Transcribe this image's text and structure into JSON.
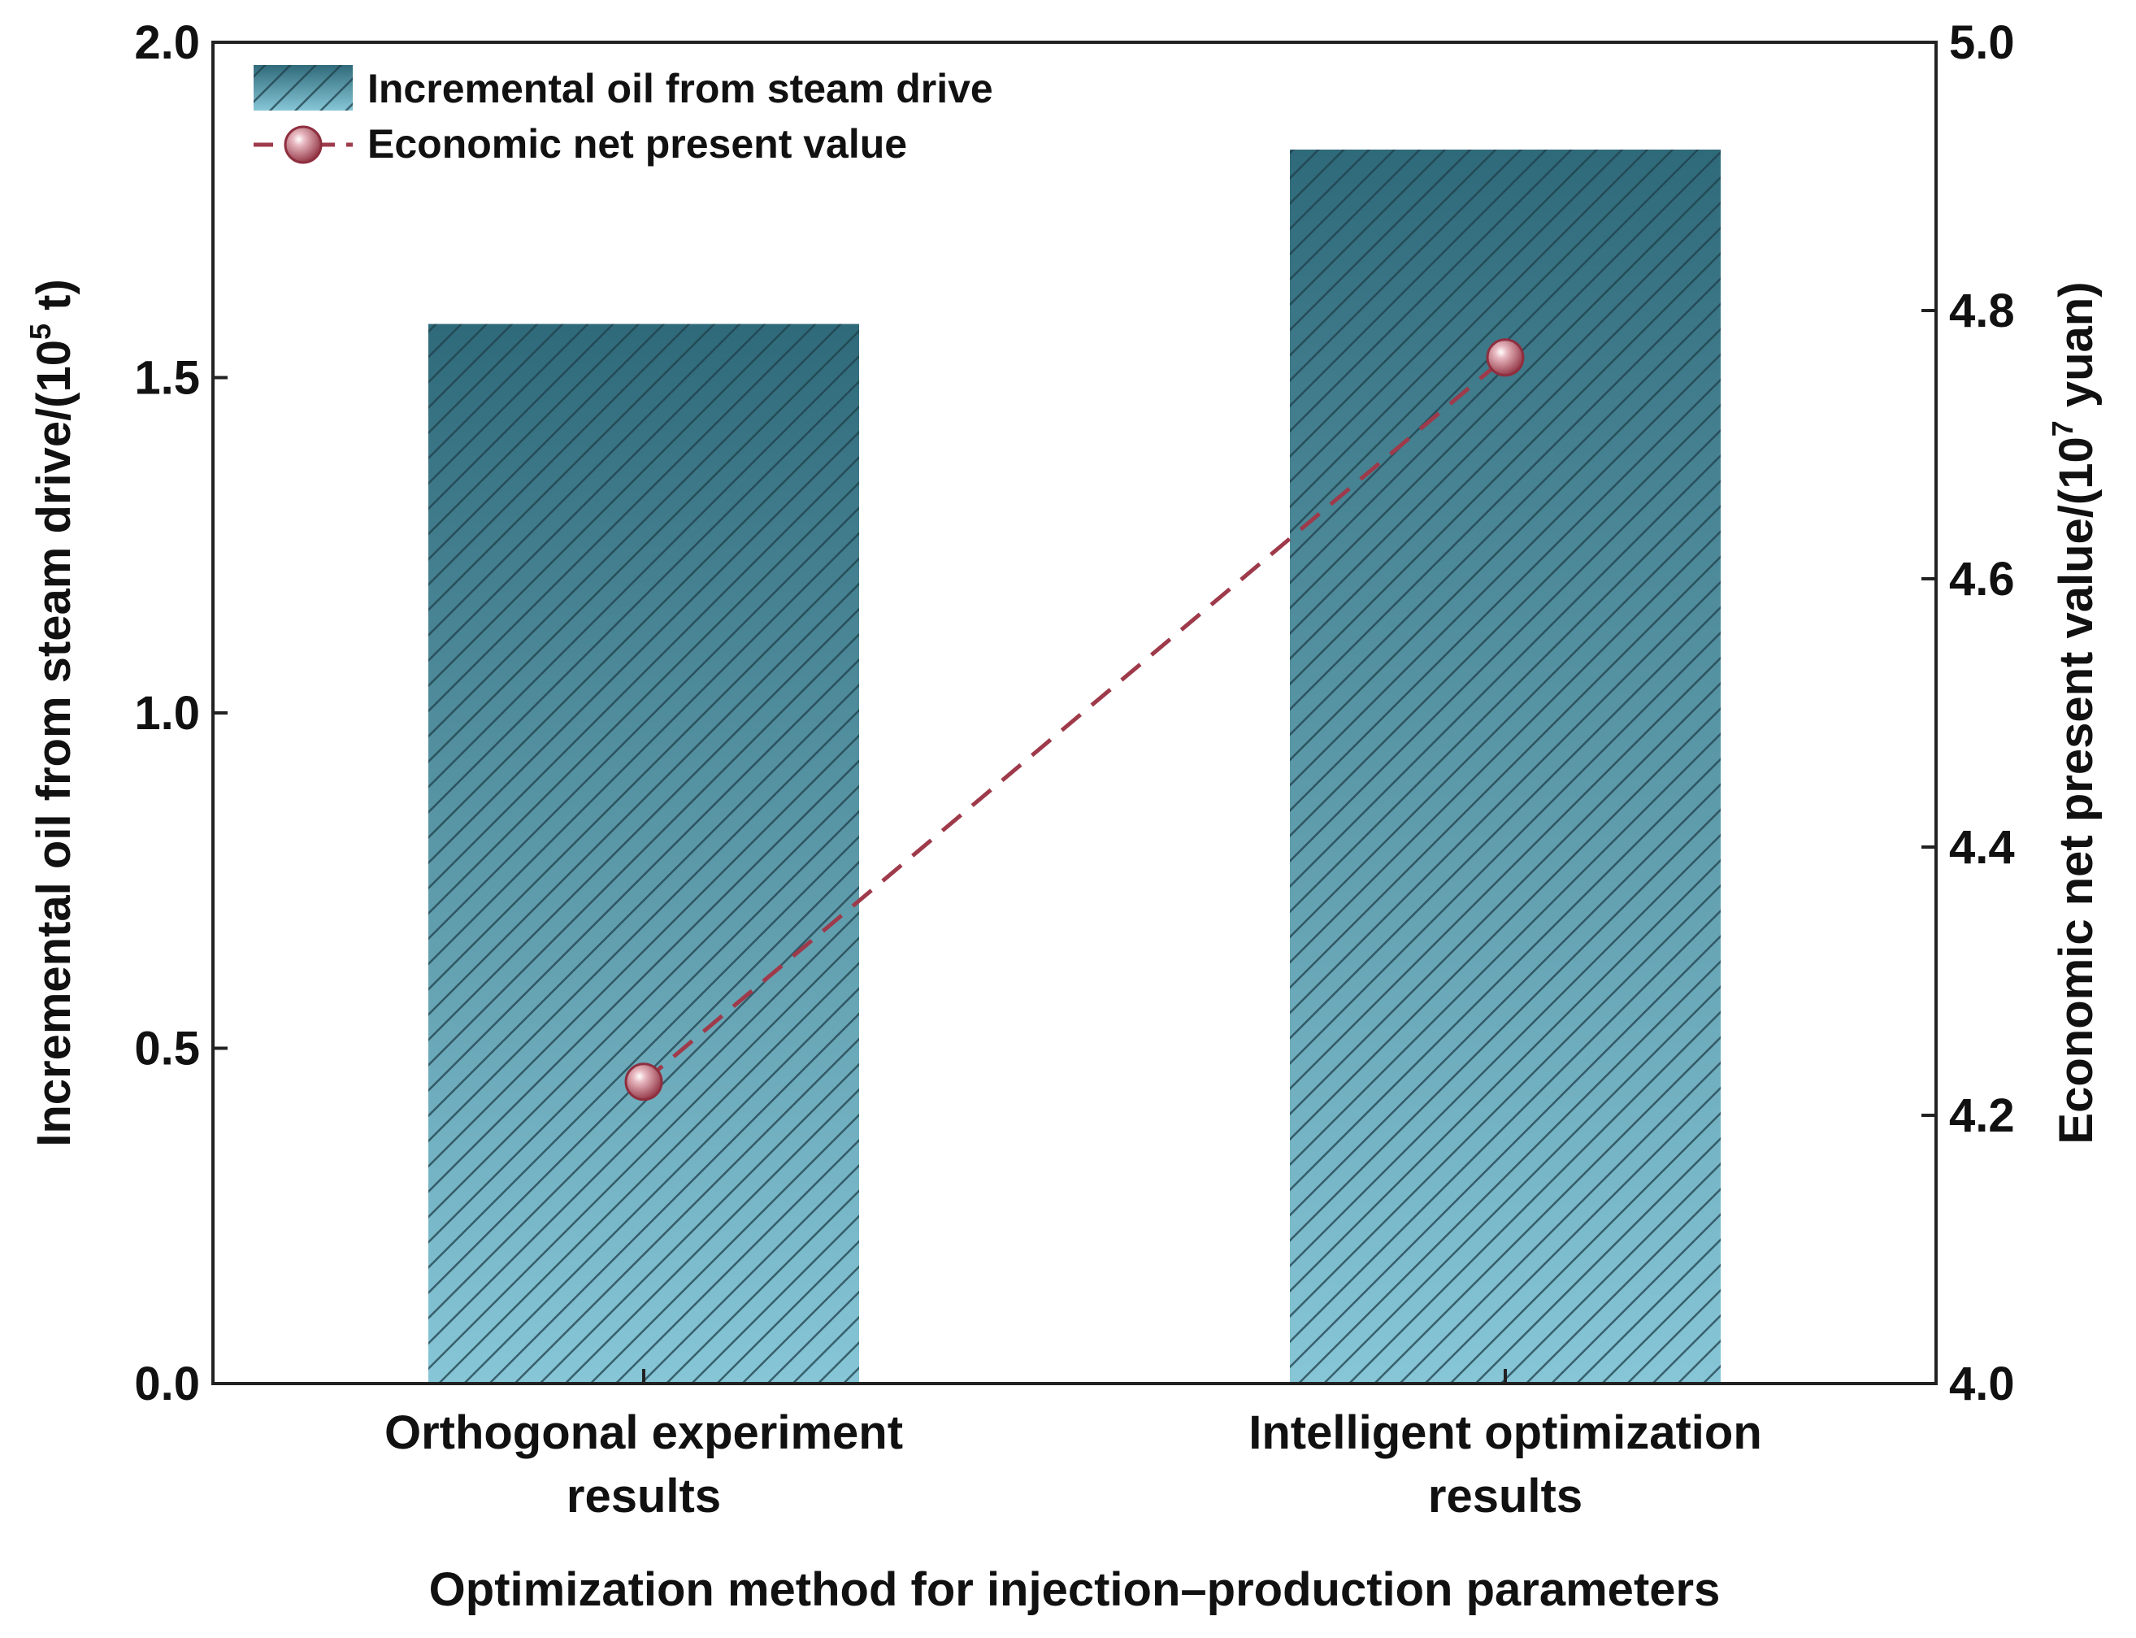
{
  "chart_data": {
    "type": "bar",
    "title": "",
    "categories": [
      [
        "Orthogonal experiment",
        "results"
      ],
      [
        "Intelligent optimization",
        "results"
      ]
    ],
    "xlabel": "Optimization method for injection–production parameters",
    "series": [
      {
        "name": "Incremental oil from steam drive",
        "kind": "bar",
        "axis": "left",
        "values": [
          1.58,
          1.84
        ],
        "color_top": "#2f6a7a",
        "color_bottom": "#86c6d6"
      },
      {
        "name": "Economic net present value",
        "kind": "line",
        "axis": "right",
        "values": [
          4.225,
          4.765
        ],
        "color": "#9e3a4a",
        "linestyle": "dashed"
      }
    ],
    "y_left": {
      "label_prefix": "Incremental oil from steam drive/(10",
      "label_sup": "5",
      "label_suffix": " t)",
      "lim": [
        0,
        2.0
      ],
      "ticks": [
        0.0,
        0.5,
        1.0,
        1.5,
        2.0
      ],
      "tick_labels": [
        "0.0",
        "0.5",
        "1.0",
        "1.5",
        "2.0"
      ]
    },
    "y_right": {
      "label_prefix": "Economic net present value/(10",
      "label_sup": "7",
      "label_suffix": " yuan)",
      "lim": [
        4.0,
        5.0
      ],
      "ticks": [
        4.0,
        4.2,
        4.4,
        4.6,
        4.8,
        5.0
      ],
      "tick_labels": [
        "4.0",
        "4.2",
        "4.4",
        "4.6",
        "4.8",
        "5.0"
      ]
    },
    "legend_position": "top-left",
    "grid": false
  }
}
